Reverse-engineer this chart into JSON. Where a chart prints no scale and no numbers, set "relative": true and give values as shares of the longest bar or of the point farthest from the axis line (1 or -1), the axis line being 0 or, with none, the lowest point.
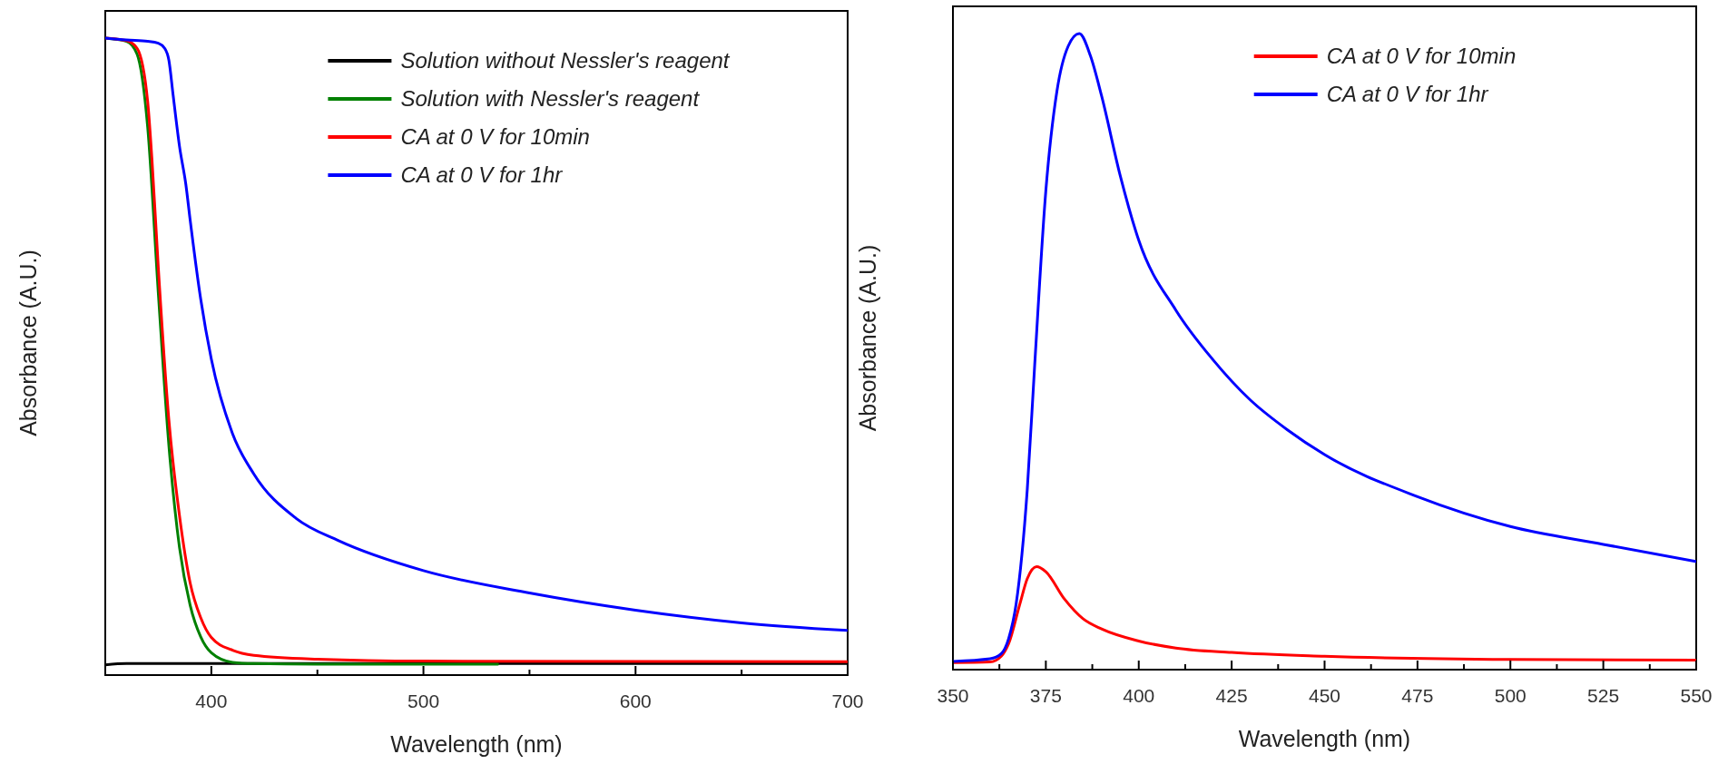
{
  "chart_data": [
    {
      "type": "line",
      "relative": true,
      "xlabel": "Wavelength (nm)",
      "ylabel": "Absorbance (A.U.)",
      "xlim": [
        350,
        700
      ],
      "xticks": [
        400,
        {
          "value": 450,
          "label": null
        },
        500,
        {
          "value": 550,
          "label": null
        },
        600,
        {
          "value": 650,
          "label": null
        },
        700
      ],
      "legend": "top right",
      "line_style": "solid",
      "series": [
        {
          "name": "Solution without Nessler's reagent",
          "color": "#000000",
          "x": [
            350,
            360,
            380,
            450,
            550,
            700
          ],
          "values": [
            0.016,
            0.018,
            0.018,
            0.018,
            0.018,
            0.018
          ]
        },
        {
          "name": "Solution with Nessler's reagent",
          "color": "#008000",
          "x": [
            350,
            360,
            365,
            370,
            375,
            380,
            385,
            390,
            395,
            400,
            410,
            420,
            450,
            535
          ],
          "values": [
            1.0,
            0.995,
            0.975,
            0.86,
            0.6,
            0.36,
            0.2,
            0.11,
            0.06,
            0.035,
            0.02,
            0.018,
            0.017,
            0.017
          ]
        },
        {
          "name": "CA at 0 V for 10min",
          "color": "#ff0000",
          "x": [
            350,
            360,
            365,
            370,
            372,
            375,
            380,
            385,
            390,
            395,
            400,
            410,
            420,
            450,
            500,
            700
          ],
          "values": [
            1.0,
            0.996,
            0.984,
            0.9,
            0.81,
            0.64,
            0.4,
            0.25,
            0.145,
            0.09,
            0.059,
            0.039,
            0.031,
            0.025,
            0.022,
            0.021
          ]
        },
        {
          "name": "CA at 0 V for 1hr",
          "color": "#0000ff",
          "x": [
            350,
            360,
            370,
            375,
            378,
            380,
            382,
            385,
            388,
            390,
            395,
            400,
            410,
            420,
            440,
            460,
            500,
            550,
            600,
            650,
            700
          ],
          "values": [
            1.0,
            0.997,
            0.995,
            0.992,
            0.984,
            0.965,
            0.91,
            0.83,
            0.77,
            0.715,
            0.59,
            0.496,
            0.379,
            0.316,
            0.246,
            0.211,
            0.164,
            0.129,
            0.102,
            0.082,
            0.07
          ]
        }
      ]
    },
    {
      "type": "line",
      "relative": true,
      "xlabel": "Wavelength (nm)",
      "ylabel": "Absorbance (A.U.)",
      "xlim": [
        350,
        550
      ],
      "xticks": [
        350,
        {
          "value": 362.5,
          "label": null
        },
        375,
        {
          "value": 387.5,
          "label": null
        },
        400,
        {
          "value": 412.5,
          "label": null
        },
        425,
        {
          "value": 437.5,
          "label": null
        },
        450,
        {
          "value": 462.5,
          "label": null
        },
        475,
        {
          "value": 487.5,
          "label": null
        },
        500,
        {
          "value": 512.5,
          "label": null
        },
        525,
        {
          "value": 537.5,
          "label": null
        },
        550
      ],
      "legend": "top right",
      "line_style": "solid",
      "series": [
        {
          "name": "CA at 0 V for 10min",
          "color": "#ff0000",
          "x": [
            350,
            360,
            363,
            365,
            368,
            370,
            372.5,
            375,
            380,
            385,
            390,
            400,
            410,
            425,
            450,
            500,
            550
          ],
          "values": [
            0.011,
            0.012,
            0.021,
            0.041,
            0.103,
            0.143,
            0.162,
            0.154,
            0.111,
            0.08,
            0.064,
            0.045,
            0.034,
            0.027,
            0.021,
            0.016,
            0.015
          ]
        },
        {
          "name": "CA at 0 V for 1hr",
          "color": "#0000ff",
          "x": [
            350,
            360,
            363,
            365,
            367,
            370,
            372,
            375,
            378,
            381,
            384,
            387,
            390,
            395,
            400,
            410,
            420,
            430,
            440,
            450,
            475,
            500,
            525,
            550
          ],
          "values": [
            0.013,
            0.017,
            0.025,
            0.049,
            0.103,
            0.283,
            0.479,
            0.753,
            0.91,
            0.98,
            1.0,
            0.965,
            0.902,
            0.777,
            0.675,
            0.565,
            0.487,
            0.424,
            0.377,
            0.338,
            0.272,
            0.225,
            0.197,
            0.17
          ]
        }
      ]
    }
  ]
}
